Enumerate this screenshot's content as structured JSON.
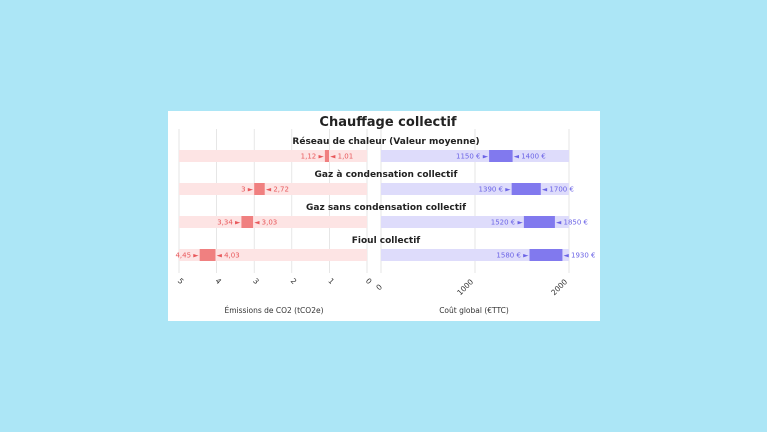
{
  "chart_data": {
    "type": "range-bar",
    "title": "Chauffage collectif",
    "categories": [
      "Réseau de chaleur (Valeur moyenne)",
      "Gaz à condensation collectif",
      "Gaz sans condensation collectif",
      "Fioul collectif"
    ],
    "emissions": {
      "axis_label": "Émissions de CO2 (tCO2e)",
      "xlim": [
        5,
        0
      ],
      "ticks": [
        "5",
        "4",
        "3",
        "2",
        "1",
        "0"
      ],
      "color": "#f08080",
      "track_color": "#fde4e4",
      "label_color": "#e8575a",
      "ranges": [
        {
          "high": 1.12,
          "low": 1.01,
          "high_label": "1,12",
          "low_label": "1,01"
        },
        {
          "high": 3,
          "low": 2.72,
          "high_label": "3",
          "low_label": "2,72"
        },
        {
          "high": 3.34,
          "low": 3.03,
          "high_label": "3,34",
          "low_label": "3,03"
        },
        {
          "high": 4.45,
          "low": 4.03,
          "high_label": "4,45",
          "low_label": "4,03"
        }
      ]
    },
    "cost": {
      "axis_label": "Coût global (€TTC)",
      "xlim": [
        0,
        2000
      ],
      "ticks": [
        "0",
        "1000",
        "2000"
      ],
      "color": "#8179ee",
      "track_color": "#dedcfb",
      "label_color": "#6b63e6",
      "ranges": [
        {
          "low": 1150,
          "high": 1400,
          "low_label": "1150 €",
          "high_label": "1400 €"
        },
        {
          "low": 1390,
          "high": 1700,
          "low_label": "1390 €",
          "high_label": "1700 €"
        },
        {
          "low": 1520,
          "high": 1850,
          "low_label": "1520 €",
          "high_label": "1850 €"
        },
        {
          "low": 1580,
          "high": 1930,
          "low_label": "1580 €",
          "high_label": "1930 €"
        }
      ]
    }
  }
}
